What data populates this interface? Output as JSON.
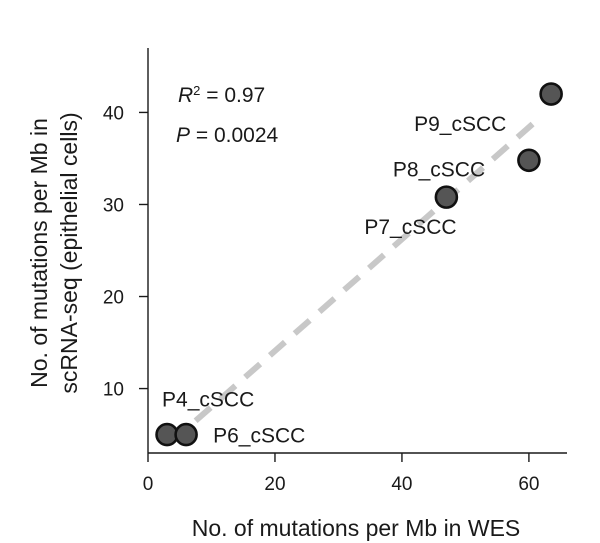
{
  "chart_data": {
    "type": "scatter",
    "xlabel": "No. of mutations per Mb in WES",
    "ylabel_line1": "No. of mutations per Mb in",
    "ylabel_line2": "scRNA-seq (epithelial cells)",
    "xlim": [
      0,
      66
    ],
    "ylim": [
      3,
      47
    ],
    "xticks": [
      0,
      20,
      40,
      60
    ],
    "yticks": [
      10,
      20,
      30,
      40
    ],
    "grid": false,
    "points": [
      {
        "label": "P4_cSCC",
        "x": 3,
        "y": 5
      },
      {
        "label": "P6_cSCC",
        "x": 6,
        "y": 5
      },
      {
        "label": "P7_cSCC",
        "x": 47,
        "y": 30.8
      },
      {
        "label": "P8_cSCC",
        "x": 60,
        "y": 34.8
      },
      {
        "label": "P9_cSCC",
        "x": 63.5,
        "y": 42
      }
    ],
    "fit_line": {
      "x": [
        7.5,
        62
      ],
      "y": [
        6.5,
        39.6
      ]
    },
    "annotations": {
      "r2_symbol": "R",
      "r2_exponent": "2",
      "r2_value": " = 0.97",
      "p_symbol": "P",
      "p_value": " = 0.0024"
    }
  }
}
